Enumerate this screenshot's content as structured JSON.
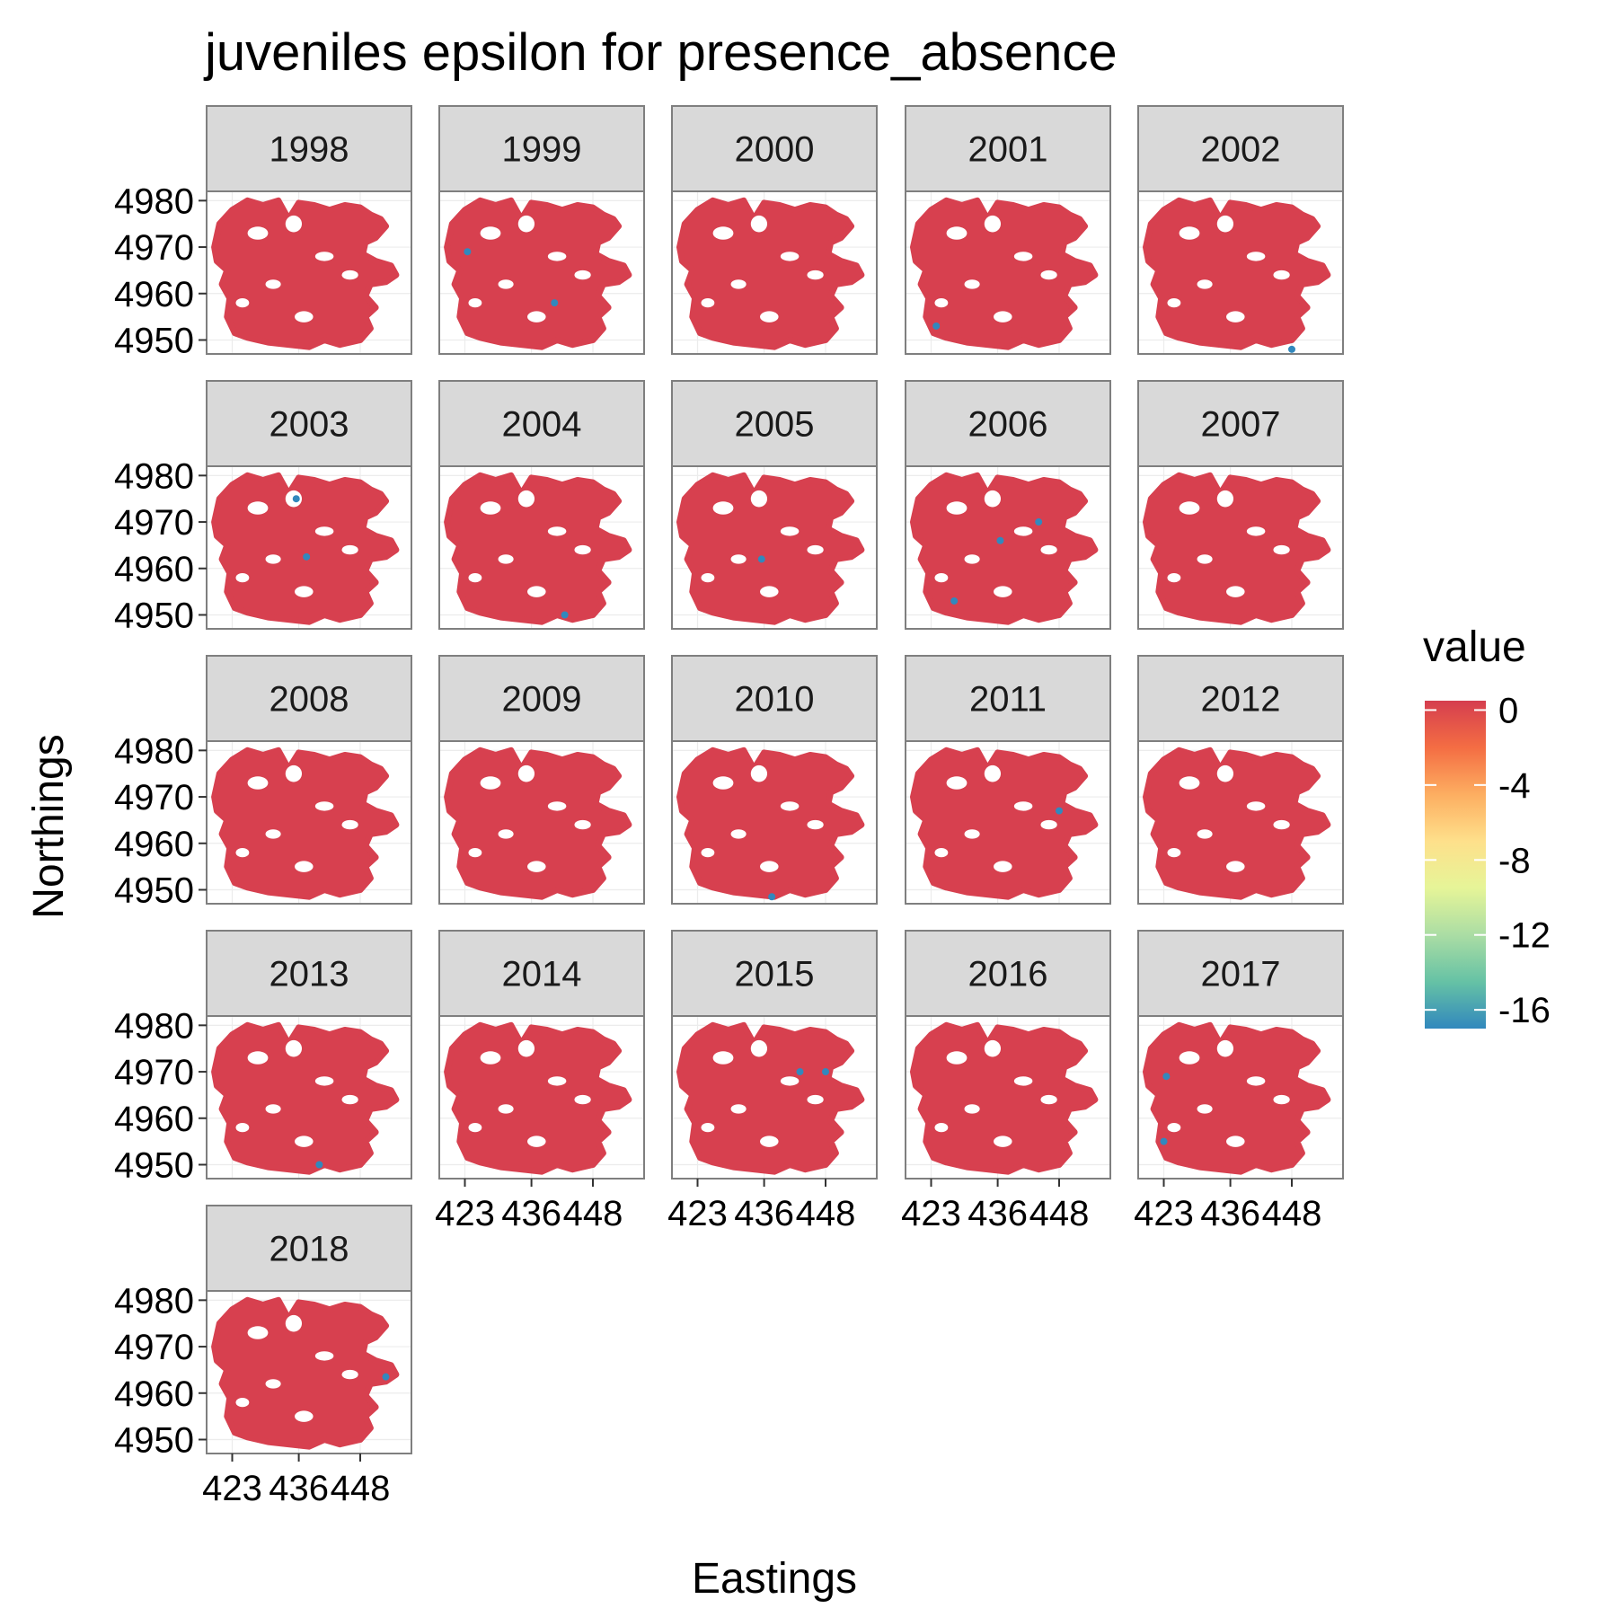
{
  "chart_data": {
    "type": "scatter",
    "title": "juveniles epsilon for presence_absence",
    "xlabel": "Eastings",
    "ylabel": "Northings",
    "facet_variable": "year",
    "panels": [
      "1998",
      "1999",
      "2000",
      "2001",
      "2002",
      "2003",
      "2004",
      "2005",
      "2006",
      "2007",
      "2008",
      "2009",
      "2010",
      "2011",
      "2012",
      "2013",
      "2014",
      "2015",
      "2016",
      "2017",
      "2018"
    ],
    "x_ticks": [
      423,
      436,
      448
    ],
    "x_tick_labels": [
      "423",
      "436",
      "448"
    ],
    "xlim": [
      418,
      458
    ],
    "y_ticks": [
      4950,
      4960,
      4970,
      4980
    ],
    "y_tick_labels": [
      "4950",
      "4960",
      "4970",
      "4980"
    ],
    "ylim": [
      4947,
      4982
    ],
    "legend": {
      "title": "value",
      "position": "right",
      "labels": [
        "0",
        "-4",
        "-8",
        "-12",
        "-16"
      ],
      "values": [
        0,
        -4,
        -8,
        -12,
        -16
      ],
      "range": [
        -17,
        0.5
      ],
      "colors": [
        "#d53e4f",
        "#f46d43",
        "#fdae61",
        "#fee08b",
        "#e6f598",
        "#abdda4",
        "#66c2a5",
        "#3288bd"
      ]
    },
    "point_color_default": "#d7404f",
    "point_color_low": "#3288bd",
    "grid": true,
    "domain_region": {
      "description": "dense cloud of survey points, values near 0",
      "value": 0
    },
    "low_value_points": [
      {
        "year": "1999",
        "x": 423.5,
        "y": 4969,
        "value": -16
      },
      {
        "year": "1999",
        "x": 440.5,
        "y": 4958,
        "value": -16
      },
      {
        "year": "2001",
        "x": 424,
        "y": 4953,
        "value": -16
      },
      {
        "year": "2002",
        "x": 448,
        "y": 4948,
        "value": -16
      },
      {
        "year": "2003",
        "x": 435.5,
        "y": 4975,
        "value": -16
      },
      {
        "year": "2003",
        "x": 437.5,
        "y": 4962.5,
        "value": -16
      },
      {
        "year": "2004",
        "x": 442.5,
        "y": 4950,
        "value": -16
      },
      {
        "year": "2005",
        "x": 435.5,
        "y": 4962,
        "value": -16
      },
      {
        "year": "2006",
        "x": 436.5,
        "y": 4966,
        "value": -16
      },
      {
        "year": "2006",
        "x": 444,
        "y": 4970,
        "value": -16
      },
      {
        "year": "2006",
        "x": 427.5,
        "y": 4953,
        "value": -16
      },
      {
        "year": "2010",
        "x": 437.5,
        "y": 4948.5,
        "value": -16
      },
      {
        "year": "2011",
        "x": 448,
        "y": 4967,
        "value": -16
      },
      {
        "year": "2013",
        "x": 440,
        "y": 4950,
        "value": -16
      },
      {
        "year": "2015",
        "x": 443,
        "y": 4970,
        "value": -16
      },
      {
        "year": "2015",
        "x": 448,
        "y": 4970,
        "value": -16
      },
      {
        "year": "2017",
        "x": 423.5,
        "y": 4969,
        "value": -16
      },
      {
        "year": "2017",
        "x": 423,
        "y": 4955,
        "value": -16
      },
      {
        "year": "2018",
        "x": 453,
        "y": 4963.5,
        "value": -16
      }
    ]
  }
}
